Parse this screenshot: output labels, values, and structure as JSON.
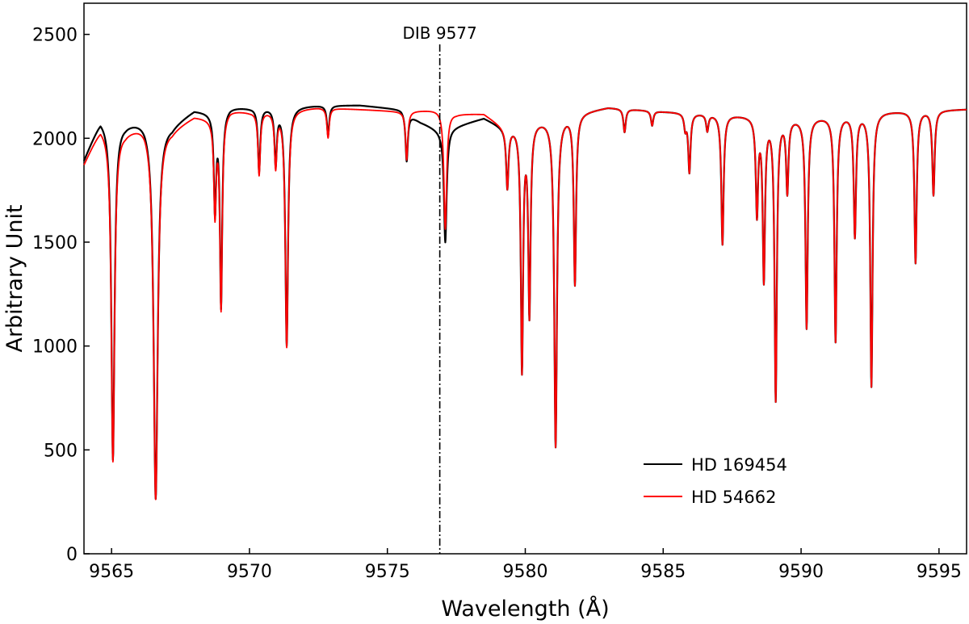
{
  "chart_data": {
    "type": "line",
    "title": "",
    "xlabel": "Wavelength (Å)",
    "ylabel": "Arbitrary Unit",
    "xlim": [
      9564,
      9596
    ],
    "ylim": [
      0,
      2650
    ],
    "xticks": [
      9565,
      9570,
      9575,
      9580,
      9585,
      9590,
      9595
    ],
    "xtick_labels": [
      "9565",
      "9570",
      "9575",
      "9580",
      "9585",
      "9590",
      "9595"
    ],
    "yticks": [
      0,
      500,
      1000,
      1500,
      2000,
      2500
    ],
    "ytick_labels": [
      "0",
      "500",
      "1000",
      "1500",
      "2000",
      "2500"
    ],
    "grid": false,
    "legend_position": "lower-right",
    "annotation": {
      "label": "DIB 9577",
      "x": 9576.9,
      "style": "dash-dot vertical line"
    },
    "lines": [
      {
        "wavelength": 9565.05,
        "depth": 1640,
        "width": 0.07
      },
      {
        "wavelength": 9566.6,
        "depth": 1830,
        "width": 0.09
      },
      {
        "wavelength": 9568.75,
        "depth": 460,
        "width": 0.05
      },
      {
        "wavelength": 9568.97,
        "depth": 920,
        "width": 0.05
      },
      {
        "wavelength": 9570.35,
        "depth": 300,
        "width": 0.05
      },
      {
        "wavelength": 9570.95,
        "depth": 260,
        "width": 0.05
      },
      {
        "wavelength": 9571.35,
        "depth": 1120,
        "width": 0.06
      },
      {
        "wavelength": 9572.85,
        "depth": 140,
        "width": 0.05
      },
      {
        "wavelength": 9575.7,
        "depth": 230,
        "width": 0.05
      },
      {
        "wavelength": 9577.1,
        "depth": 560,
        "width": 0.06
      },
      {
        "wavelength": 9579.35,
        "depth": 290,
        "width": 0.05
      },
      {
        "wavelength": 9579.88,
        "depth": 1190,
        "width": 0.05
      },
      {
        "wavelength": 9580.15,
        "depth": 920,
        "width": 0.05
      },
      {
        "wavelength": 9581.1,
        "depth": 1580,
        "width": 0.06
      },
      {
        "wavelength": 9581.8,
        "depth": 810,
        "width": 0.05
      },
      {
        "wavelength": 9583.6,
        "depth": 110,
        "width": 0.05
      },
      {
        "wavelength": 9584.6,
        "depth": 70,
        "width": 0.05
      },
      {
        "wavelength": 9585.8,
        "depth": 70,
        "width": 0.05
      },
      {
        "wavelength": 9585.95,
        "depth": 280,
        "width": 0.05
      },
      {
        "wavelength": 9586.6,
        "depth": 80,
        "width": 0.05
      },
      {
        "wavelength": 9587.15,
        "depth": 620,
        "width": 0.05
      },
      {
        "wavelength": 9588.4,
        "depth": 460,
        "width": 0.05
      },
      {
        "wavelength": 9588.65,
        "depth": 770,
        "width": 0.05
      },
      {
        "wavelength": 9589.08,
        "depth": 1350,
        "width": 0.05
      },
      {
        "wavelength": 9589.5,
        "depth": 350,
        "width": 0.05
      },
      {
        "wavelength": 9590.2,
        "depth": 1010,
        "width": 0.05
      },
      {
        "wavelength": 9591.25,
        "depth": 1080,
        "width": 0.05
      },
      {
        "wavelength": 9591.95,
        "depth": 580,
        "width": 0.05
      },
      {
        "wavelength": 9592.55,
        "depth": 1300,
        "width": 0.05
      },
      {
        "wavelength": 9594.15,
        "depth": 720,
        "width": 0.05
      },
      {
        "wavelength": 9594.8,
        "depth": 400,
        "width": 0.05
      }
    ],
    "series": [
      {
        "name": "HD 169454",
        "color": "#000000",
        "continuum_x": [
          9564,
          9564.6,
          9565.5,
          9566.2,
          9567.2,
          9568,
          9568.6,
          9569.3,
          9570,
          9572.5,
          9574,
          9575.5,
          9576.2,
          9576.9,
          9577.5,
          9578.5,
          9579.3,
          9580,
          9583,
          9585,
          9590,
          9593,
          9596
        ],
        "continuum_y": [
          1900,
          2100,
          2080,
          2100,
          2070,
          2140,
          2130,
          2155,
          2150,
          2160,
          2160,
          2140,
          2080,
          2040,
          2060,
          2100,
          2050,
          2080,
          2150,
          2130,
          2100,
          2130,
          2140
        ]
      },
      {
        "name": "HD 54662",
        "color": "#ff0000",
        "continuum_x": [
          9564,
          9564.6,
          9565.5,
          9566.2,
          9567.2,
          9568,
          9568.6,
          9569.3,
          9570,
          9572.5,
          9574,
          9575.5,
          9576.2,
          9576.9,
          9577.5,
          9578.5,
          9579.3,
          9580,
          9583,
          9585,
          9590,
          9593,
          9596
        ],
        "continuum_y": [
          1880,
          2060,
          2040,
          2080,
          2050,
          2110,
          2100,
          2140,
          2130,
          2150,
          2140,
          2130,
          2135,
          2140,
          2120,
          2120,
          2050,
          2080,
          2150,
          2130,
          2100,
          2130,
          2140
        ]
      }
    ]
  }
}
